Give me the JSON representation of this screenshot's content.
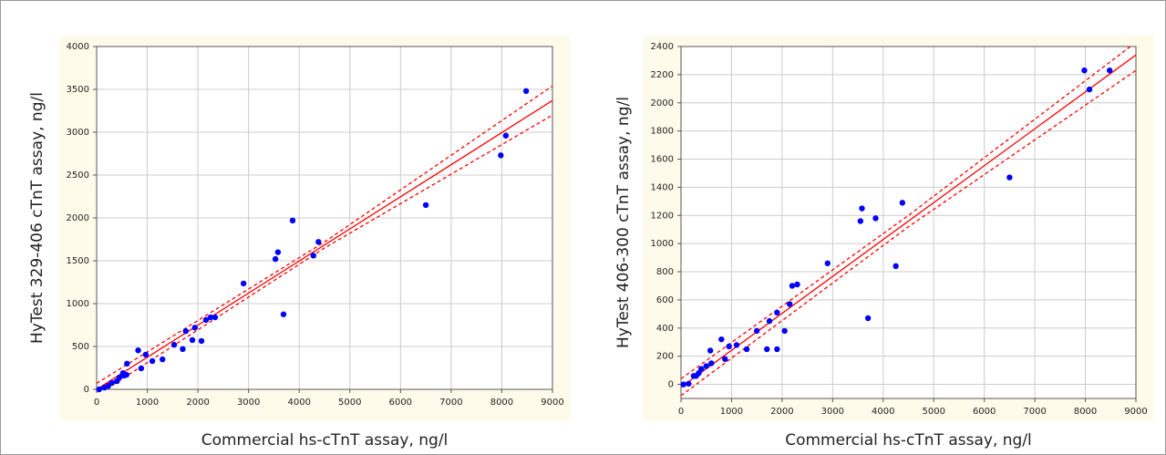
{
  "chart_data": [
    {
      "type": "scatter",
      "x_label": "Commercial hs-cTnT assay, ng/l",
      "y_label": "HyTest 329-406 cTnT assay, ng/l",
      "color": "#0000ff",
      "fit_color": "#ff0000",
      "grid": true,
      "xlim": [
        0,
        9000
      ],
      "xticks": [
        0,
        1000,
        2000,
        3000,
        4000,
        5000,
        6000,
        7000,
        8000,
        9000
      ],
      "ylim": [
        0,
        4000
      ],
      "yticks": [
        0,
        500,
        1000,
        1500,
        2000,
        2500,
        3000,
        3500,
        4000
      ],
      "points": {
        "x": [
          50,
          150,
          230,
          300,
          400,
          450,
          520,
          540,
          590,
          600,
          820,
          880,
          970,
          1100,
          1300,
          1530,
          1700,
          1760,
          1890,
          1940,
          2070,
          2160,
          2250,
          2340,
          2900,
          3530,
          3580,
          3690,
          3870,
          4280,
          4380,
          6500,
          7980,
          8080,
          8480
        ],
        "values": [
          0,
          20,
          40,
          75,
          95,
          140,
          190,
          160,
          170,
          300,
          455,
          245,
          405,
          330,
          350,
          520,
          470,
          680,
          575,
          720,
          565,
          810,
          840,
          840,
          1235,
          1520,
          1600,
          875,
          1970,
          1560,
          1720,
          2150,
          2730,
          2960,
          3480
        ]
      },
      "fit": {
        "x": [
          0,
          9000
        ],
        "values": [
          0,
          3370
        ]
      },
      "bands": {
        "x": [
          0,
          4500,
          9000
        ],
        "upper": [
          70,
          1720,
          3540
        ],
        "lower": [
          -70,
          1650,
          3200
        ]
      }
    },
    {
      "type": "scatter",
      "x_label": "Commercial hs-cTnT assay, ng/l",
      "y_label": "HyTest 406-300 cTnT assay, ng/l",
      "color": "#0000ff",
      "fit_color": "#ff0000",
      "grid": true,
      "xlim": [
        0,
        9000
      ],
      "xticks": [
        0,
        1000,
        2000,
        3000,
        4000,
        5000,
        6000,
        7000,
        8000,
        9000
      ],
      "ylim": [
        -100,
        2400
      ],
      "yticks": [
        0,
        200,
        400,
        600,
        800,
        1000,
        1200,
        1400,
        1600,
        1800,
        2000,
        2200,
        2400
      ],
      "points": {
        "x": [
          50,
          150,
          250,
          300,
          350,
          400,
          500,
          600,
          580,
          800,
          870,
          950,
          1100,
          1300,
          1500,
          1700,
          1750,
          1900,
          1900,
          2050,
          2150,
          2200,
          2300,
          2900,
          3550,
          3580,
          3700,
          3850,
          4250,
          4380,
          6500,
          7980,
          8080,
          8480
        ],
        "values": [
          0,
          5,
          60,
          60,
          80,
          110,
          130,
          150,
          240,
          320,
          180,
          270,
          280,
          250,
          380,
          250,
          450,
          250,
          510,
          380,
          570,
          700,
          710,
          860,
          1160,
          1250,
          470,
          1180,
          840,
          1290,
          1470,
          2230,
          2095,
          2230
        ]
      },
      "fit": {
        "x": [
          0,
          9000
        ],
        "values": [
          -20,
          2340
        ]
      },
      "bands": {
        "x": [
          0,
          4500,
          9000
        ],
        "upper": [
          40,
          1200,
          2430
        ],
        "lower": [
          -80,
          1120,
          2230
        ]
      }
    }
  ]
}
